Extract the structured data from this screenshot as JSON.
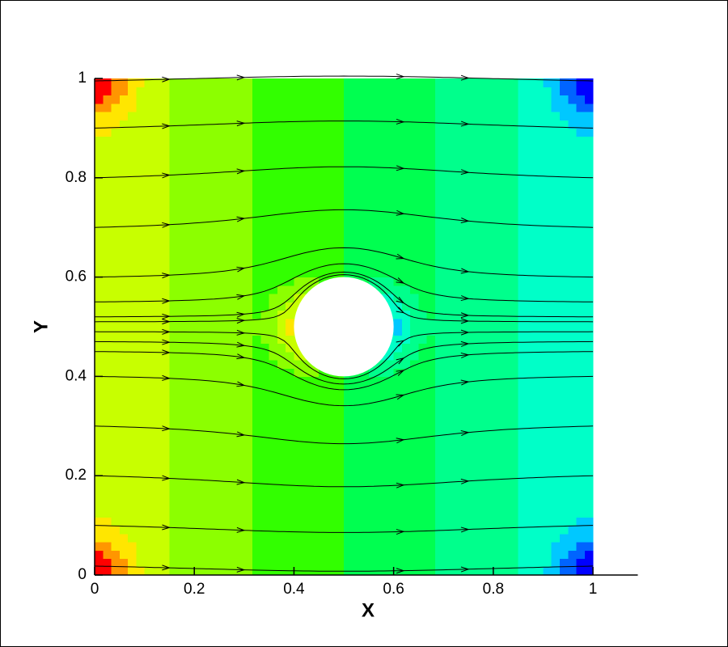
{
  "chart_data": {
    "type": "contour-streamline",
    "xlabel": "X",
    "ylabel": "Y",
    "xlim": [
      0,
      1.09
    ],
    "ylim": [
      0,
      1
    ],
    "xticks": [
      0,
      0.2,
      0.4,
      0.6,
      0.8,
      1
    ],
    "yticks": [
      0,
      0.2,
      0.4,
      0.6,
      0.8,
      1
    ],
    "obstacle": {
      "center": [
        0.5,
        0.5
      ],
      "radius": 0.1
    },
    "streamlines": [
      0.018,
      0.1,
      0.2,
      0.3,
      0.4,
      0.45,
      0.47,
      0.49,
      0.51,
      0.52,
      0.55,
      0.6,
      0.7,
      0.8,
      0.9,
      0.995
    ],
    "colormap": [
      "#0000ff",
      "#0064ff",
      "#00c8ff",
      "#00ffc8",
      "#00ff8c",
      "#00ff50",
      "#32ff00",
      "#8cff00",
      "#c8ff00",
      "#ffe600",
      "#ff9600",
      "#ff0000"
    ],
    "line_color": "#000000"
  }
}
